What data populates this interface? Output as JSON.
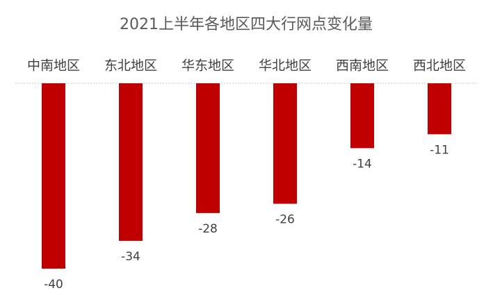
{
  "chart_data": {
    "type": "bar",
    "title": "2021上半年各地区四大行网点变化量",
    "categories": [
      "中南地区",
      "东北地区",
      "华东地区",
      "华北地区",
      "西南地区",
      "西北地区"
    ],
    "values": [
      -40,
      -34,
      -28,
      -26,
      -14,
      -11
    ],
    "color": "#c00000"
  }
}
